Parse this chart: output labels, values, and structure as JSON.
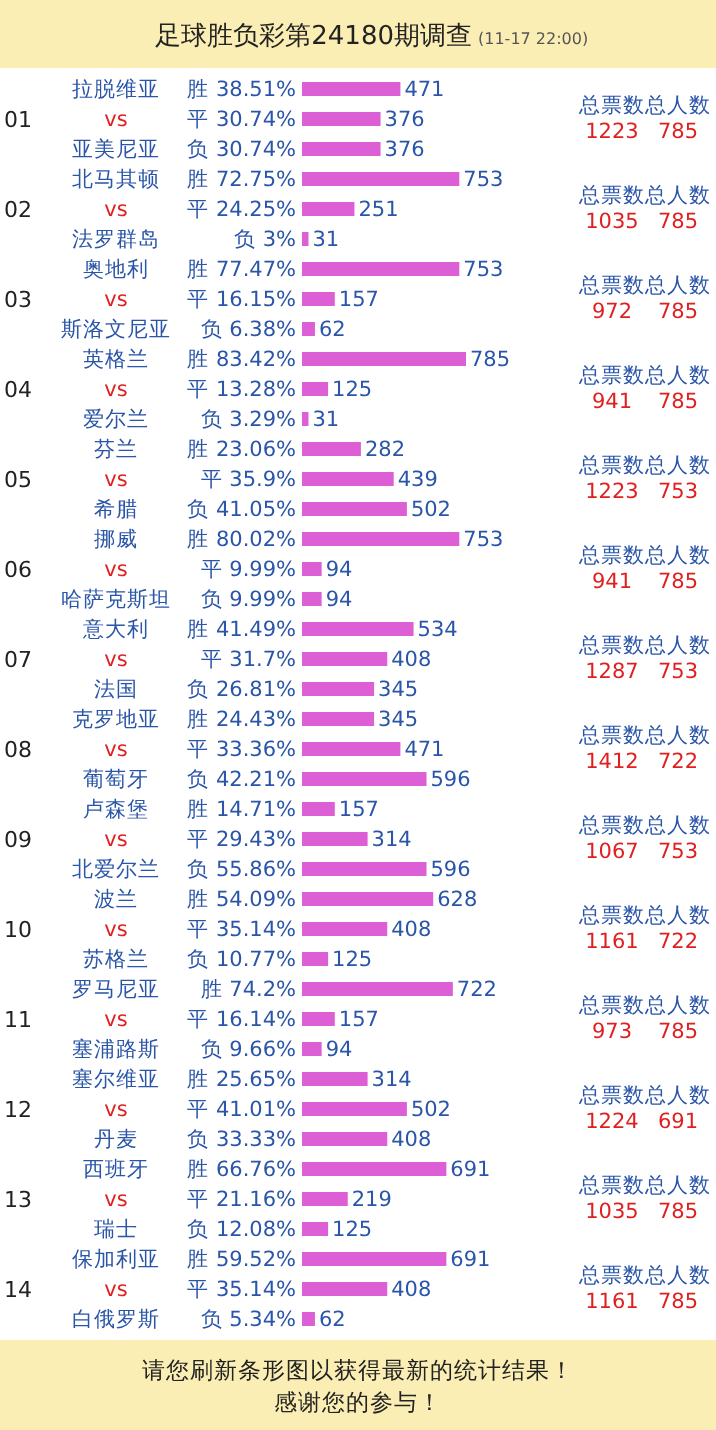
{
  "chart_data": {
    "type": "bar",
    "orientation": "horizontal",
    "title": "足球胜负彩第24180期调查",
    "subtitle": "(11-17 22:00)",
    "categories": [
      "胜 38.51%",
      "平 30.74%",
      "负 30.74%",
      "胜 72.75%",
      "平 24.25%",
      "负 3%",
      "胜 77.47%",
      "平 16.15%",
      "负 6.38%",
      "胜 83.42%",
      "平 13.28%",
      "负 3.29%",
      "胜 23.06%",
      "平 35.9%",
      "负 41.05%",
      "胜 80.02%",
      "平 9.99%",
      "负 9.99%",
      "胜 41.49%",
      "平 31.7%",
      "负 26.81%",
      "胜 24.43%",
      "平 33.36%",
      "负 42.21%",
      "胜 14.71%",
      "平 29.43%",
      "负 55.86%",
      "胜 54.09%",
      "平 35.14%",
      "负 10.77%",
      "胜 74.2%",
      "平 16.14%",
      "负 9.66%",
      "胜 25.65%",
      "平 41.01%",
      "负 33.33%",
      "胜 66.76%",
      "平 21.16%",
      "负 12.08%",
      "胜 59.52%",
      "平 35.14%",
      "负 5.34%"
    ],
    "values": [
      471,
      376,
      376,
      753,
      251,
      31,
      753,
      157,
      62,
      785,
      125,
      31,
      282,
      439,
      502,
      753,
      94,
      94,
      534,
      408,
      345,
      345,
      471,
      596,
      157,
      314,
      596,
      628,
      408,
      125,
      722,
      157,
      94,
      314,
      502,
      408,
      691,
      219,
      125,
      691,
      408,
      62
    ],
    "color": "#dd5fd6",
    "data_labels": true,
    "annotations": [
      "01",
      "拉脱维亚",
      "vs",
      "亚美尼亚",
      "总票数",
      "1223",
      "总人数",
      "785",
      "02",
      "北马其顿",
      "vs",
      "法罗群岛",
      "总票数",
      "1035",
      "总人数",
      "785",
      "03",
      "奥地利",
      "vs",
      "斯洛文尼亚",
      "总票数",
      "972",
      "总人数",
      "785",
      "04",
      "英格兰",
      "vs",
      "爱尔兰",
      "总票数",
      "941",
      "总人数",
      "785",
      "05",
      "芬兰",
      "vs",
      "希腊",
      "总票数",
      "1223",
      "总人数",
      "753",
      "06",
      "挪威",
      "vs",
      "哈萨克斯坦",
      "总票数",
      "941",
      "总人数",
      "785",
      "07",
      "意大利",
      "vs",
      "法国",
      "总票数",
      "1287",
      "总人数",
      "753",
      "08",
      "克罗地亚",
      "vs",
      "葡萄牙",
      "总票数",
      "1412",
      "总人数",
      "722",
      "09",
      "卢森堡",
      "vs",
      "北爱尔兰",
      "总票数",
      "1067",
      "总人数",
      "753",
      "10",
      "波兰",
      "vs",
      "苏格兰",
      "总票数",
      "1161",
      "总人数",
      "722",
      "11",
      "罗马尼亚",
      "vs",
      "塞浦路斯",
      "总票数",
      "973",
      "总人数",
      "785",
      "12",
      "塞尔维亚",
      "vs",
      "丹麦",
      "总票数",
      "1224",
      "总人数",
      "691",
      "13",
      "西班牙",
      "vs",
      "瑞士",
      "总票数",
      "1035",
      "总人数",
      "785",
      "14",
      "保加利亚",
      "vs",
      "白俄罗斯",
      "总票数",
      "1161",
      "总人数",
      "785",
      "请您刷新条形图以获得最新的统计结果！",
      "感谢您的参与！"
    ]
  }
}
